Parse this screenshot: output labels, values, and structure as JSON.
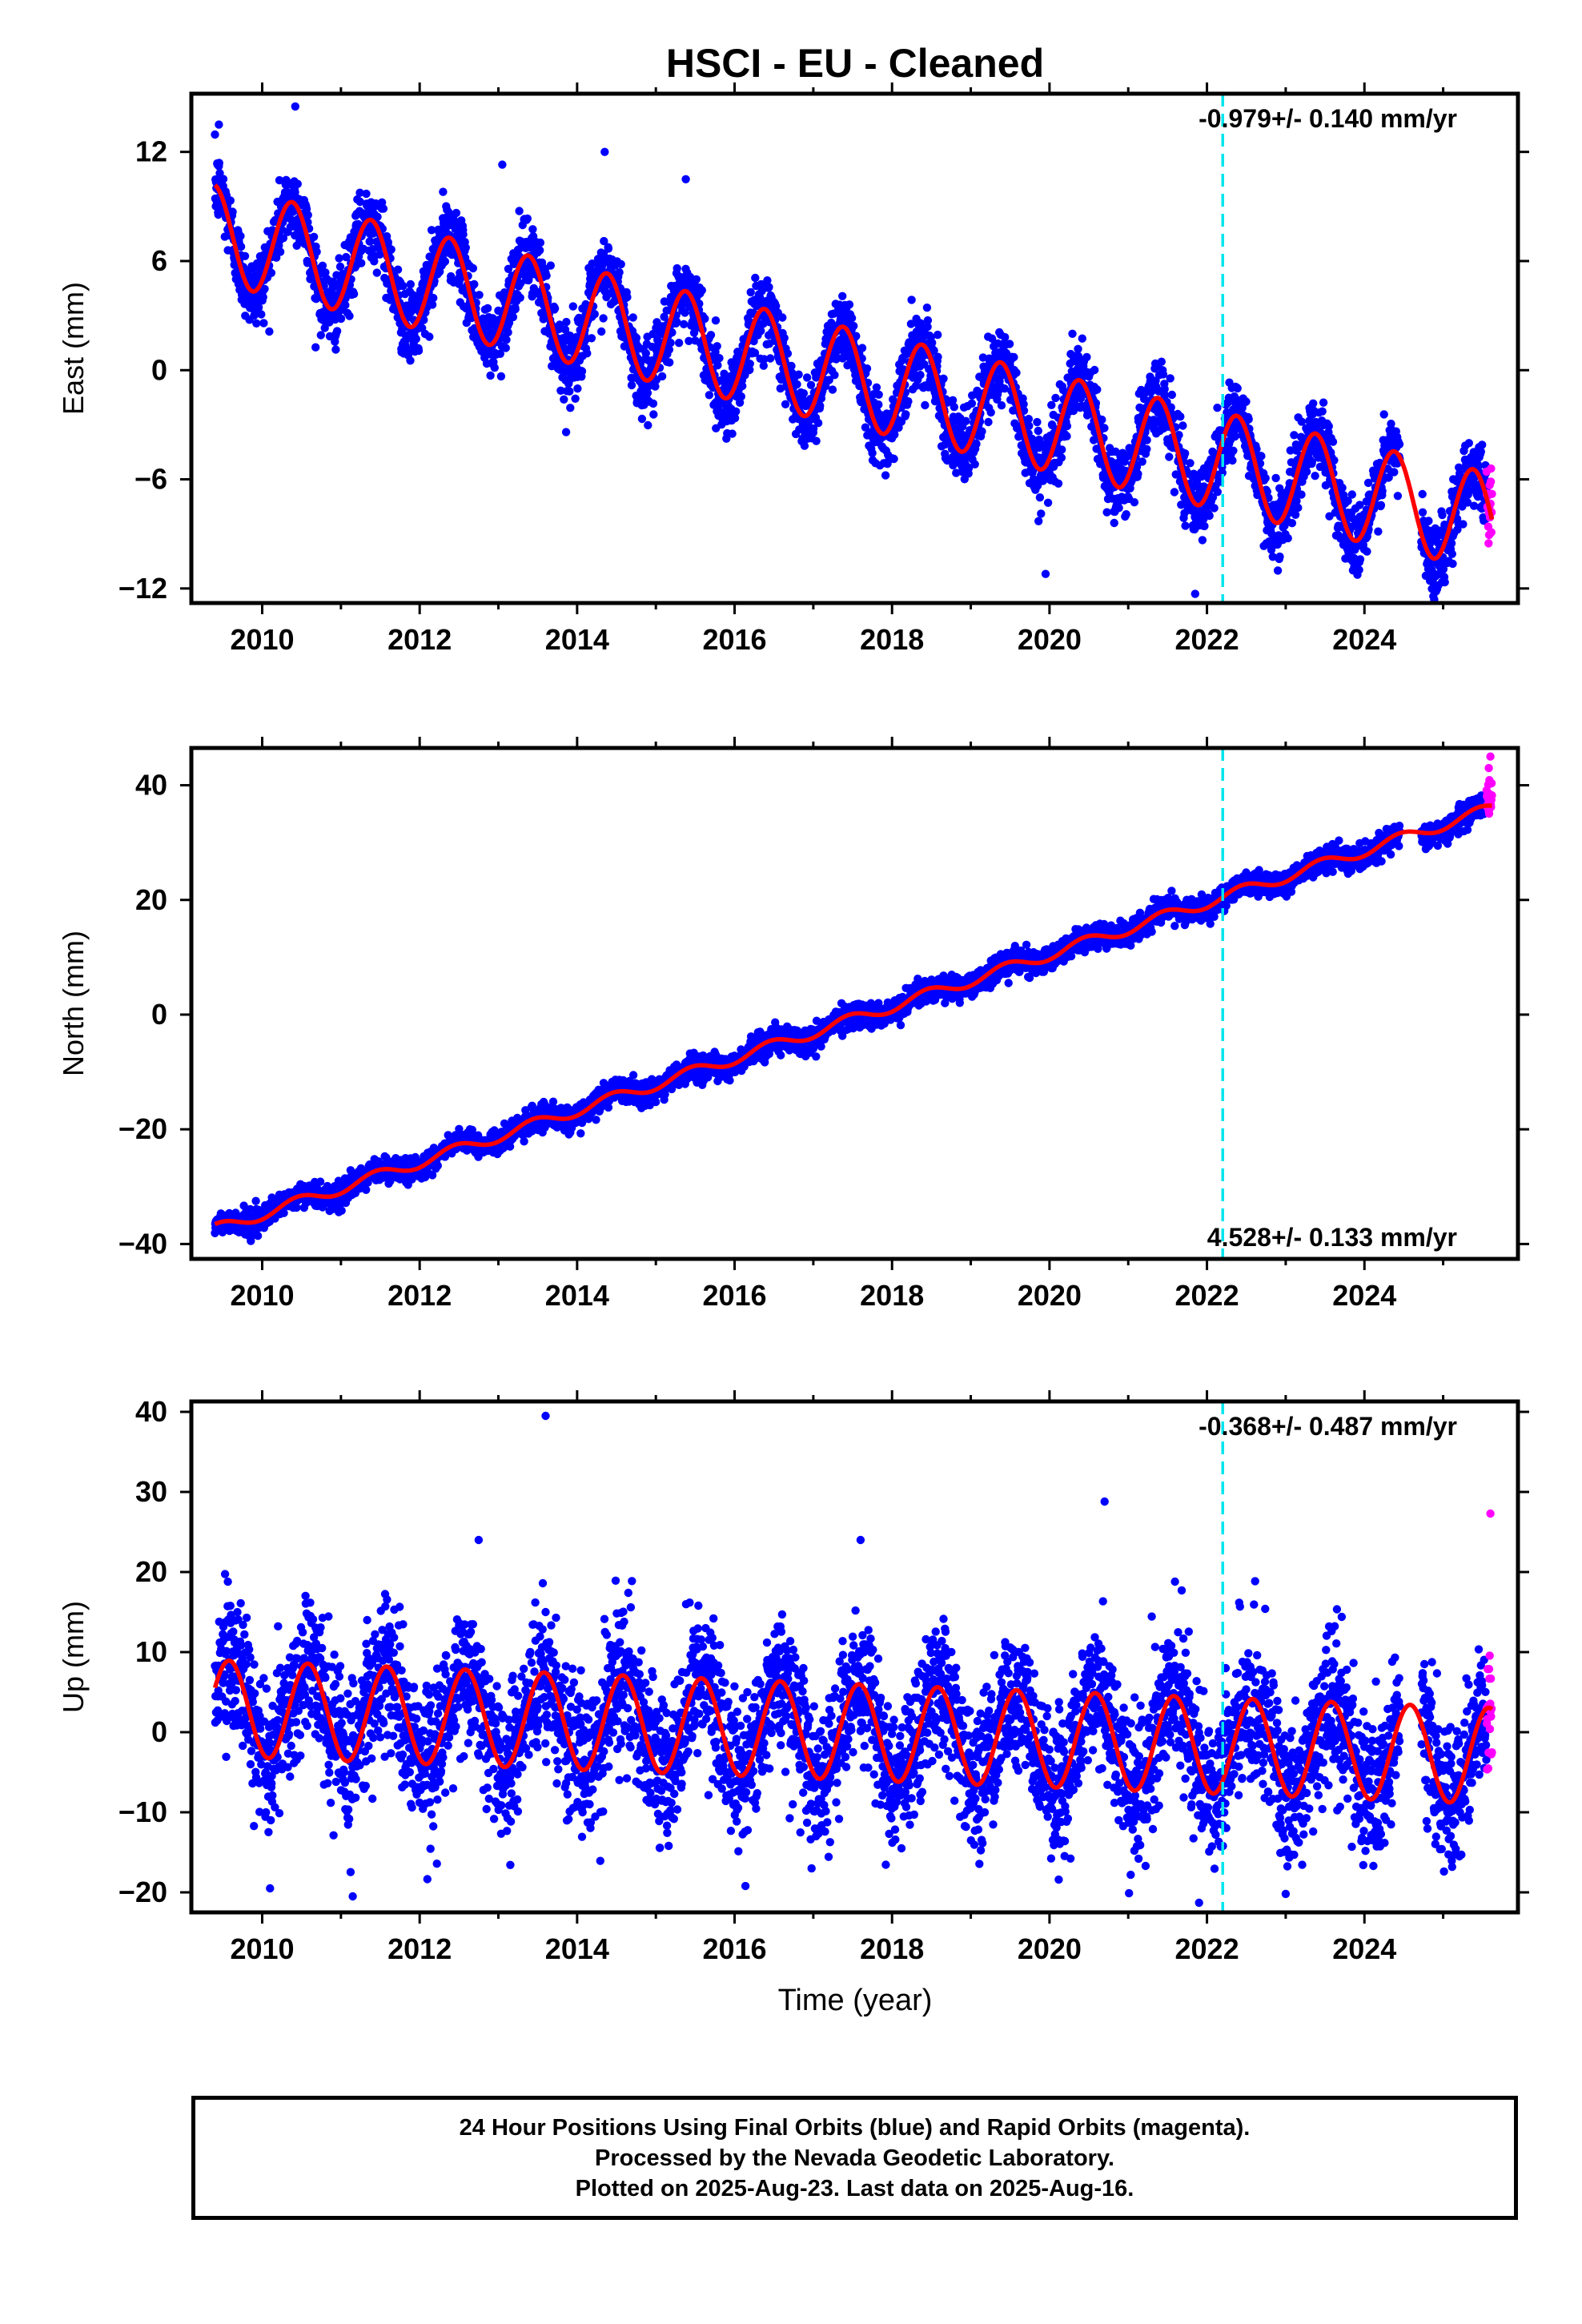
{
  "title": "HSCI  - EU - Cleaned",
  "colors": {
    "final_points": "#0000ff",
    "rapid_points": "#ff00ff",
    "model_line": "#ff0000",
    "event_line": "#00e5ee",
    "axes": "#000000"
  },
  "xlabel": "Time (year)",
  "x_tick_labels": [
    "2010",
    "2012",
    "2014",
    "2016",
    "2018",
    "2020",
    "2022",
    "2024"
  ],
  "chart_data": [
    {
      "type": "scatter",
      "name": "east",
      "ylabel": "East (mm)",
      "rate_label": "-0.979+/- 0.140 mm/yr",
      "rate_label_position": "top-right",
      "xlim": [
        2009.1,
        2025.95
      ],
      "ylim": [
        -12.8,
        15.2
      ],
      "y_ticks": [
        12,
        6,
        0,
        -6,
        -12
      ],
      "y_tick_labels": [
        "12",
        "6",
        "0",
        "−6",
        "−12"
      ],
      "x_start": 2009.4,
      "x_end": 2025.62,
      "rapid_start": 2025.55,
      "event_line_x": 2022.2,
      "model": {
        "trend_start": 7.5,
        "rate": -0.979,
        "seasonal_amplitude": 2.7,
        "peak_phase": 0.38
      },
      "noise": 1.0,
      "outliers": [
        [
          2009.45,
          13.5
        ],
        [
          2010.42,
          14.5
        ],
        [
          2013.05,
          11.3
        ],
        [
          2014.35,
          12.0
        ],
        [
          2015.38,
          10.5
        ],
        [
          2019.95,
          -11.2
        ],
        [
          2021.85,
          -12.3
        ]
      ]
    },
    {
      "type": "scatter",
      "name": "north",
      "ylabel": "North (mm)",
      "rate_label": "4.528+/- 0.133 mm/yr",
      "rate_label_position": "bottom-right",
      "xlim": [
        2009.1,
        2025.95
      ],
      "ylim": [
        -42.6,
        46.5
      ],
      "y_ticks": [
        40,
        20,
        0,
        -20,
        -40
      ],
      "y_tick_labels": [
        "40",
        "20",
        "0",
        "−20",
        "−40"
      ],
      "x_start": 2009.4,
      "x_end": 2025.62,
      "rapid_start": 2025.55,
      "event_line_x": 2022.2,
      "model": {
        "trend_start": -37.5,
        "rate": 4.528,
        "seasonal_amplitude": 1.0,
        "peak_phase": 0.45
      },
      "noise": 1.0,
      "outliers": [
        [
          2025.6,
          45.0
        ],
        [
          2025.58,
          43.0
        ]
      ]
    },
    {
      "type": "scatter",
      "name": "up",
      "ylabel": "Up (mm)",
      "rate_label": "-0.368+/- 0.487 mm/yr",
      "rate_label_position": "top-right",
      "xlim": [
        2009.1,
        2025.95
      ],
      "ylim": [
        -22.5,
        41.3
      ],
      "y_ticks": [
        40,
        30,
        20,
        10,
        0,
        -10,
        -20
      ],
      "y_tick_labels": [
        "40",
        "30",
        "20",
        "10",
        "0",
        "−10",
        "−20"
      ],
      "x_start": 2009.4,
      "x_end": 2025.62,
      "rapid_start": 2025.55,
      "event_line_x": 2022.2,
      "model": {
        "trend_start": 3.0,
        "rate": -0.368,
        "seasonal_amplitude": 6.0,
        "peak_phase": 0.58
      },
      "noise": 4.5,
      "outliers": [
        [
          2013.6,
          39.5
        ],
        [
          2020.7,
          28.8
        ],
        [
          2017.6,
          24.0
        ],
        [
          2012.75,
          24.0
        ],
        [
          2025.6,
          27.3
        ],
        [
          2011.15,
          -20.5
        ],
        [
          2021.9,
          -21.3
        ],
        [
          2010.1,
          -19.5
        ]
      ]
    }
  ],
  "footer": {
    "line1": "24 Hour Positions Using Final Orbits (blue) and Rapid Orbits (magenta).",
    "line2": "Processed by the Nevada Geodetic Laboratory.",
    "line3": "Plotted on 2025-Aug-23. Last data on 2025-Aug-16."
  }
}
